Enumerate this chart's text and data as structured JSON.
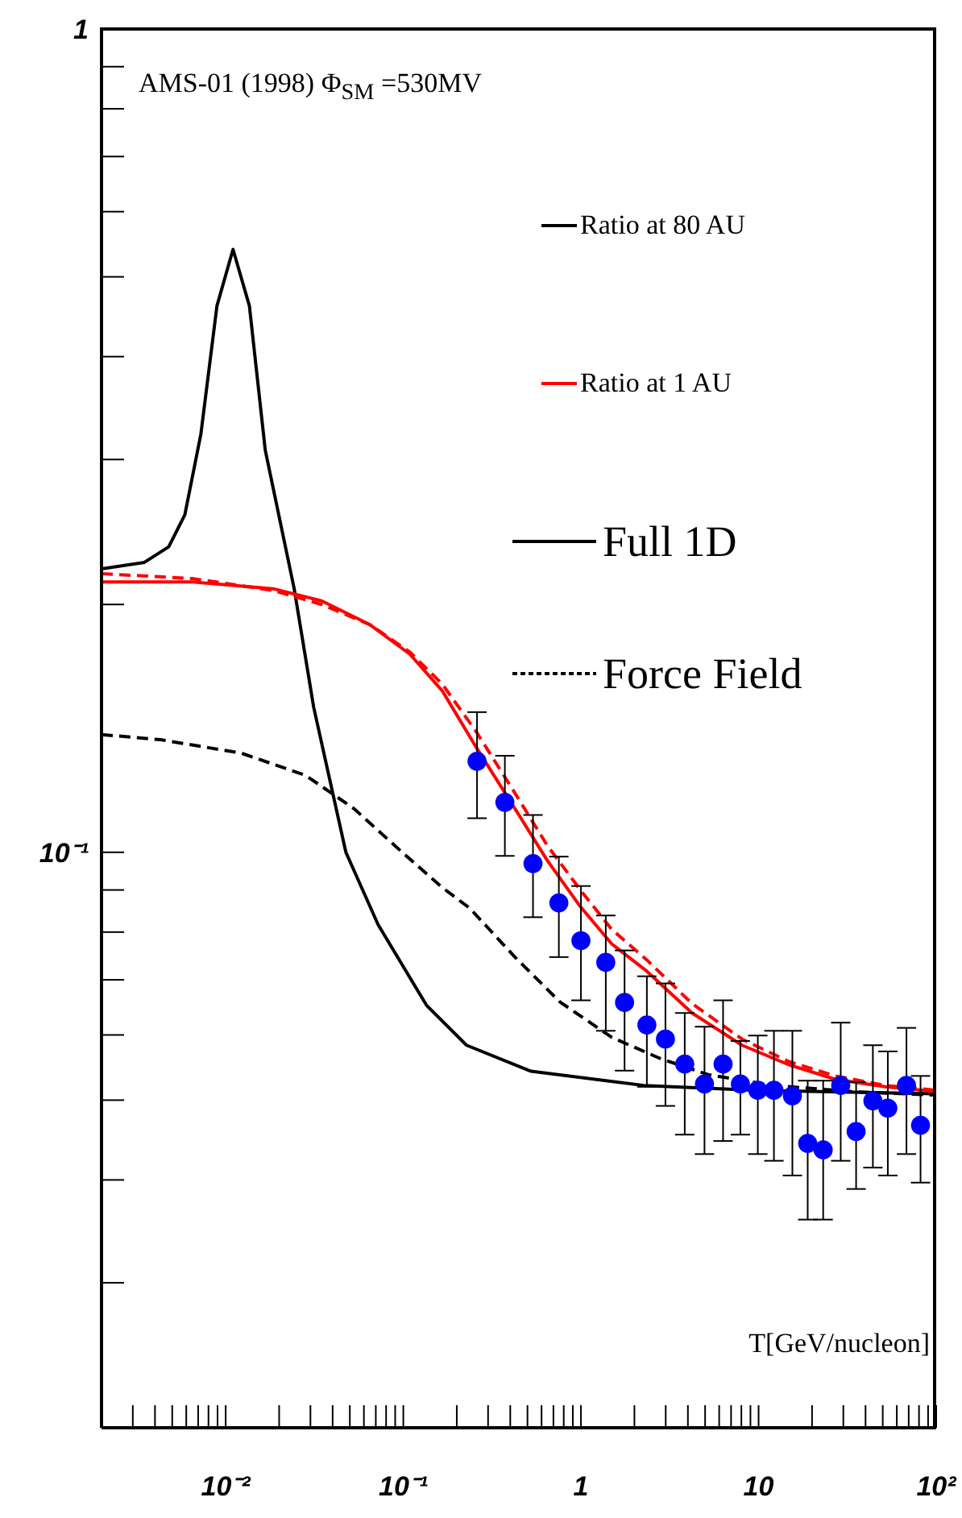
{
  "chart_data": {
    "type": "line",
    "xlabel": "T[GeV/nucleon]",
    "annotations": [
      "AMS-01 (1998) Φ$_{SM}$ =530MV",
      "Full 1D",
      "Force Field"
    ],
    "log": "xy",
    "legend": "top right",
    "grid": false,
    "xlim": [
      0.002,
      100
    ],
    "ylim": [
      0.02,
      1
    ],
    "xticks": [
      {
        "value": 0.003,
        "label": null
      },
      {
        "value": 0.004,
        "label": null
      },
      {
        "value": 0.005,
        "label": null
      },
      {
        "value": 0.006,
        "label": null
      },
      {
        "value": 0.007,
        "label": null
      },
      {
        "value": 0.008,
        "label": null
      },
      {
        "value": 0.009,
        "label": null
      },
      {
        "value": 0.01,
        "label": "10⁻²"
      },
      {
        "value": 0.02,
        "label": null
      },
      {
        "value": 0.03,
        "label": null
      },
      {
        "value": 0.04,
        "label": null
      },
      {
        "value": 0.05,
        "label": null
      },
      {
        "value": 0.06,
        "label": null
      },
      {
        "value": 0.07,
        "label": null
      },
      {
        "value": 0.08,
        "label": null
      },
      {
        "value": 0.09,
        "label": null
      },
      {
        "value": 0.1,
        "label": "10⁻¹"
      },
      {
        "value": 0.2,
        "label": null
      },
      {
        "value": 0.3,
        "label": null
      },
      {
        "value": 0.4,
        "label": null
      },
      {
        "value": 0.5,
        "label": null
      },
      {
        "value": 0.6,
        "label": null
      },
      {
        "value": 0.7,
        "label": null
      },
      {
        "value": 0.8,
        "label": null
      },
      {
        "value": 0.9,
        "label": null
      },
      1,
      {
        "value": 2,
        "label": null
      },
      {
        "value": 3,
        "label": null
      },
      {
        "value": 4,
        "label": null
      },
      {
        "value": 5,
        "label": null
      },
      {
        "value": 6,
        "label": null
      },
      {
        "value": 7,
        "label": null
      },
      {
        "value": 8,
        "label": null
      },
      {
        "value": 9,
        "label": null
      },
      10,
      {
        "value": 20,
        "label": null
      },
      {
        "value": 30,
        "label": null
      },
      {
        "value": 40,
        "label": null
      },
      {
        "value": 50,
        "label": null
      },
      {
        "value": 60,
        "label": null
      },
      {
        "value": 70,
        "label": null
      },
      {
        "value": 80,
        "label": null
      },
      {
        "value": 90,
        "label": null
      },
      {
        "value": 100,
        "label": "10²"
      }
    ],
    "yticks": [
      {
        "value": 0.03,
        "label": null
      },
      {
        "value": 0.04,
        "label": null
      },
      {
        "value": 0.05,
        "label": null
      },
      {
        "value": 0.06,
        "label": null
      },
      {
        "value": 0.07,
        "label": null
      },
      {
        "value": 0.08,
        "label": null
      },
      {
        "value": 0.09,
        "label": null
      },
      {
        "value": 0.1,
        "label": "10⁻¹"
      },
      {
        "value": 0.2,
        "label": null
      },
      {
        "value": 0.3,
        "label": null
      },
      {
        "value": 0.4,
        "label": null
      },
      {
        "value": 0.5,
        "label": null
      },
      {
        "value": 0.6,
        "label": null
      },
      {
        "value": 0.7,
        "label": null
      },
      {
        "value": 0.8,
        "label": null
      },
      {
        "value": 0.9,
        "label": null
      },
      1
    ],
    "series": [
      {
        "name": "Ratio at 80 AU",
        "color": "#000000",
        "line_style": "solid",
        "x": [
          0.002,
          0.00349,
          0.00478,
          0.00589,
          0.00725,
          0.00893,
          0.011,
          0.0136,
          0.0167,
          0.0243,
          0.0313,
          0.0475,
          0.0721,
          0.0986,
          0.135,
          0.227,
          0.524,
          2.26,
          9.73,
          100
        ],
        "values": [
          0.221,
          0.225,
          0.235,
          0.257,
          0.322,
          0.461,
          0.54,
          0.461,
          0.308,
          0.209,
          0.15,
          0.1,
          0.0817,
          0.073,
          0.0652,
          0.0583,
          0.0542,
          0.0521,
          0.0514,
          0.0509
        ]
      },
      {
        "color": "#000000",
        "line_style": "dashed",
        "x": [
          0.002,
          0.0043,
          0.0122,
          0.0282,
          0.0527,
          0.0986,
          0.166,
          0.237,
          0.425,
          0.762,
          1.49,
          2.78,
          5.2,
          12.0,
          34.1,
          100
        ],
        "values": [
          0.139,
          0.137,
          0.132,
          0.124,
          0.113,
          0.1,
          0.0906,
          0.0855,
          0.0746,
          0.0658,
          0.0596,
          0.0562,
          0.0537,
          0.0521,
          0.0512,
          0.0507
        ]
      },
      {
        "name": "Ratio at 1 AU",
        "color": "#ff0000",
        "line_style": "solid",
        "x": [
          0.002,
          0.00653,
          0.0185,
          0.0347,
          0.0649,
          0.109,
          0.166,
          0.258,
          0.425,
          0.645,
          0.98,
          1.49,
          2.35,
          4.22,
          8.07,
          14.8,
          27.0,
          51.7,
          100
        ],
        "values": [
          0.213,
          0.213,
          0.209,
          0.202,
          0.189,
          0.174,
          0.157,
          0.134,
          0.113,
          0.0978,
          0.0862,
          0.0774,
          0.0717,
          0.0638,
          0.0583,
          0.0552,
          0.053,
          0.0519,
          0.0512
        ]
      },
      {
        "color": "#ff0000",
        "line_style": "dashed",
        "x": [
          0.002,
          0.00653,
          0.0185,
          0.0347,
          0.0649,
          0.109,
          0.166,
          0.258,
          0.425,
          0.645,
          1,
          1.49,
          2.35,
          4.22,
          8.07,
          14.8,
          27.0,
          51.7,
          100
        ],
        "values": [
          0.218,
          0.215,
          0.208,
          0.2,
          0.189,
          0.175,
          0.16,
          0.14,
          0.118,
          0.102,
          0.0898,
          0.0806,
          0.074,
          0.0655,
          0.0593,
          0.0557,
          0.0535,
          0.0521,
          0.0514
        ]
      },
      {
        "type": "scatter",
        "color": "#0000ff",
        "marker": "circle",
        "x": [
          0.26,
          0.373,
          0.537,
          0.751,
          1.0,
          1.38,
          1.76,
          2.35,
          2.99,
          3.84,
          4.96,
          6.31,
          7.9,
          9.9,
          12.2,
          15.5,
          18.9,
          23.1,
          29,
          35.4,
          44,
          53.4,
          68,
          81.6
        ],
        "values": [
          0.129,
          0.115,
          0.0969,
          0.0868,
          0.0781,
          0.0735,
          0.0657,
          0.0617,
          0.0593,
          0.0553,
          0.0523,
          0.0553,
          0.0523,
          0.0514,
          0.0514,
          0.0506,
          0.0443,
          0.0435,
          0.0521,
          0.0458,
          0.0499,
          0.0489,
          0.0521,
          0.0466
        ],
        "errors": [
          [
            0.11,
            0.148
          ],
          [
            0.099,
            0.131
          ],
          [
            0.0834,
            0.111
          ],
          [
            0.0746,
            0.0988
          ],
          [
            0.0661,
            0.091
          ],
          [
            0.0607,
            0.0838
          ],
          [
            0.0543,
            0.076
          ],
          [
            0.0519,
            0.0707
          ],
          [
            0.0492,
            0.0693
          ],
          [
            0.0454,
            0.0638
          ],
          [
            0.043,
            0.0614
          ],
          [
            0.0446,
            0.0661
          ],
          [
            0.0454,
            0.059
          ],
          [
            0.043,
            0.0599
          ],
          [
            0.0422,
            0.0607
          ],
          [
            0.0405,
            0.0607
          ],
          [
            0.0358,
            0.0528
          ],
          [
            0.0358,
            0.0528
          ],
          [
            0.0422,
            0.0621
          ],
          [
            0.039,
            0.0526
          ],
          [
            0.0414,
            0.0583
          ],
          [
            0.0405,
            0.0573
          ],
          [
            0.043,
            0.0612
          ],
          [
            0.0397,
            0.0535
          ]
        ]
      }
    ]
  }
}
